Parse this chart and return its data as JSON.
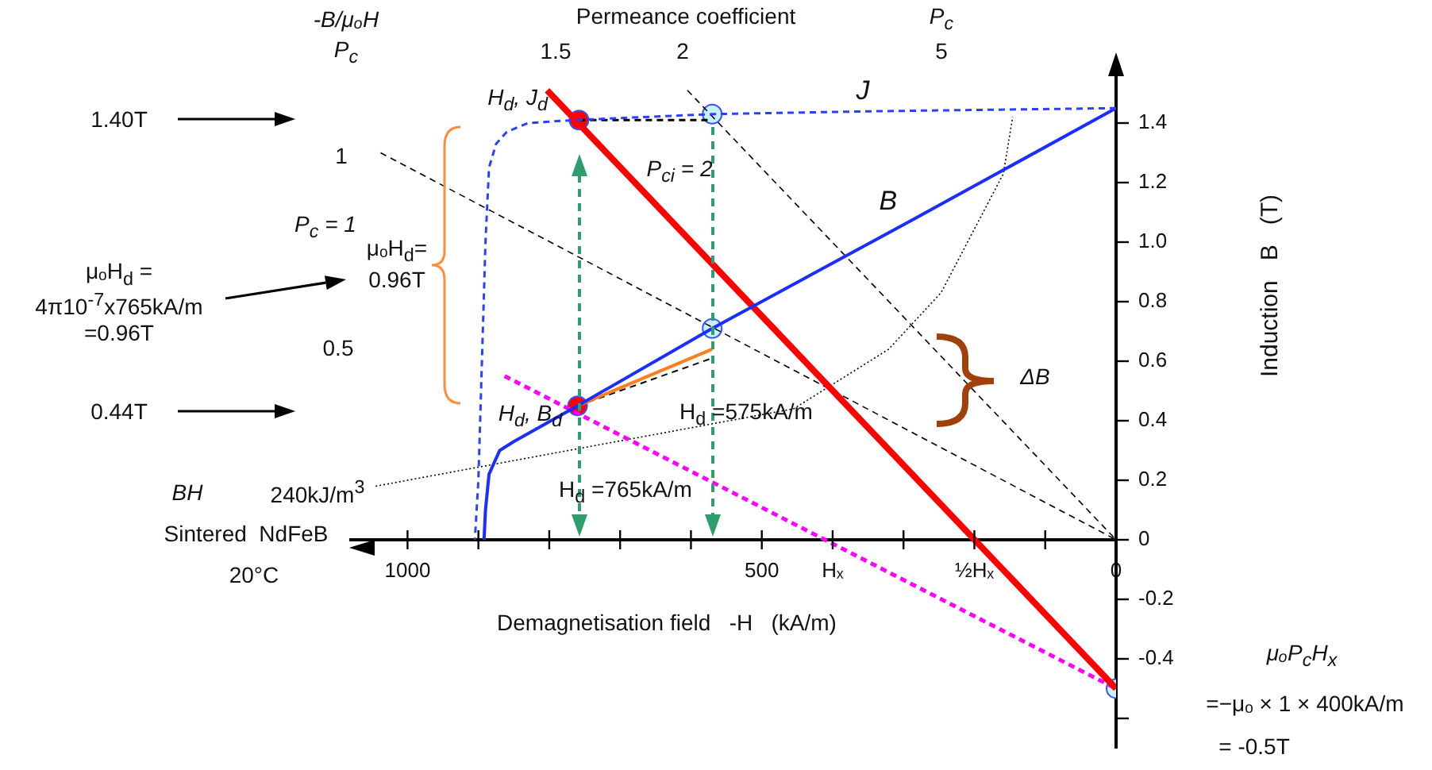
{
  "chart_data": {
    "type": "line",
    "xlabel": "Demagnetisation field   -H   (kA/m)",
    "ylabel": "Induction   B   (T)",
    "xlim": [
      1080,
      0
    ],
    "ylim": [
      -0.7,
      1.6
    ],
    "xticks": [
      1000,
      {
        "value": 900,
        "label": null
      },
      {
        "value": 800,
        "label": null
      },
      {
        "value": 700,
        "label": null
      },
      {
        "value": 600,
        "label": null
      },
      500,
      {
        "value": 400,
        "label": "Hₓ"
      },
      {
        "value": 300,
        "label": null
      },
      {
        "value": 200,
        "label": "½Hₓ"
      },
      {
        "value": 100,
        "label": null
      },
      0
    ],
    "yticks": [
      1.4,
      1.2,
      {
        "value": 1,
        "label": "1.0"
      },
      0.8,
      0.6,
      0.4,
      0.2,
      0,
      -0.2,
      -0.4,
      {
        "value": -0.6,
        "label": null
      }
    ],
    "grid": false,
    "legend": false,
    "marker": "none",
    "series": [
      {
        "name": "J",
        "type": "line",
        "color": "#2b3fff",
        "line_style": "dashed",
        "x": [
          0,
          330,
          570,
          765,
          830,
          860,
          875,
          885,
          890,
          895,
          900,
          905
        ],
        "values": [
          1.45,
          1.44,
          1.43,
          1.41,
          1.4,
          1.37,
          1.33,
          1.25,
          1.0,
          0.6,
          0.2,
          0
        ]
      },
      {
        "name": "B",
        "type": "line",
        "color": "#1a2eff",
        "line_style": "solid",
        "x": [
          0,
          291,
          570,
          760,
          850,
          870,
          885,
          890,
          892
        ],
        "values": [
          1.45,
          1.07,
          0.71,
          0.45,
          0.33,
          0.3,
          0.22,
          0.1,
          0
        ]
      },
      {
        "type": "line",
        "color": "#ff0000",
        "line_style": "solid",
        "x": [
          803,
          0
        ],
        "values": [
          1.51,
          -0.5
        ]
      },
      {
        "type": "line",
        "color": "#ff00ff",
        "line_style": "dashed",
        "x": [
          863,
          0
        ],
        "values": [
          0.55,
          -0.5
        ]
      },
      {
        "type": "line",
        "color": "#000000",
        "line_style": "dashed",
        "x": [
          1038,
          0
        ],
        "values": [
          1.3,
          0
        ]
      },
      {
        "type": "line",
        "color": "#000000",
        "line_style": "dashed",
        "x": [
          605,
          0
        ],
        "values": [
          1.51,
          0
        ]
      },
      {
        "type": "line",
        "color": "#000000",
        "line_style": "dotted",
        "x": [
          1045,
          455,
          321,
          247,
          159,
          146
        ],
        "values": [
          0.18,
          0.44,
          0.64,
          0.83,
          1.23,
          1.42
        ]
      },
      {
        "type": "line",
        "color": "#ff7f20",
        "line_style": "solid",
        "x": [
          760,
          570
        ],
        "values": [
          0.45,
          0.64
        ]
      },
      {
        "type": "line",
        "color": "#000000",
        "line_style": "dashed",
        "x": [
          760,
          570
        ],
        "values": [
          0.45,
          0.61
        ]
      },
      {
        "type": "line",
        "color": "#000000",
        "line_style": "dashed",
        "x": [
          758,
          570
        ],
        "values": [
          1.41,
          1.41
        ]
      },
      {
        "type": "scatter",
        "marker": "circle",
        "x": [
          758,
          570,
          760,
          570,
          0
        ],
        "values": [
          1.41,
          1.43,
          0.45,
          0.71,
          -0.5
        ],
        "colors": [
          "#ff0000",
          "#c8f0ff",
          "#ff0000",
          "#c8f0ff",
          "#c8f0ff"
        ]
      }
    ],
    "annotations": [
      "-B/μₒH",
      "P$_{c}$",
      "Permeance coefficient",
      "1.5",
      "2",
      "P$_{c}$",
      "5",
      "1",
      "P$_{c}$ = 1",
      "0.5",
      "1.40T",
      "0.44T",
      "μₒH$_{d}$ =\n4π10$^{-7}$x765kA/m\n=0.96T",
      "μₒH$_{d}$=\n0.96T",
      "BH",
      "240kJ/m$^{3}$",
      "Sintered  NdFeB",
      "20°C",
      "μₒP$_{c}$H$_{x}$",
      "=−μₒ × 1 × 400kA/m",
      "= -0.5T",
      "H$_{d}$, J$_{d}$",
      "P$_{ci}$ = 2",
      "H$_{d}$, B$_{d}$",
      "H$_{d}$ =575kA/m",
      "H$_{d}$ =765kA/m",
      "ΔB"
    ]
  }
}
